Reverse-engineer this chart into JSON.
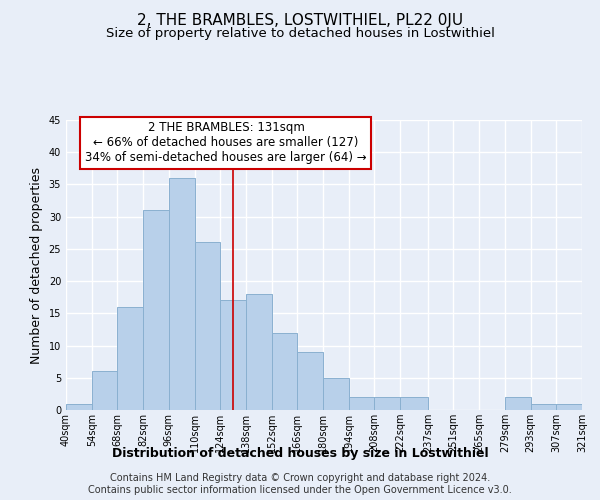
{
  "title": "2, THE BRAMBLES, LOSTWITHIEL, PL22 0JU",
  "subtitle": "Size of property relative to detached houses in Lostwithiel",
  "xlabel": "Distribution of detached houses by size in Lostwithiel",
  "ylabel": "Number of detached properties",
  "bin_edges": [
    40,
    54,
    68,
    82,
    96,
    110,
    124,
    138,
    152,
    166,
    180,
    194,
    208,
    222,
    237,
    251,
    265,
    279,
    293,
    307,
    321
  ],
  "bar_values": [
    1,
    6,
    16,
    31,
    36,
    26,
    17,
    18,
    12,
    9,
    5,
    2,
    2,
    2,
    0,
    0,
    0,
    2,
    1,
    1
  ],
  "tick_labels": [
    "40sqm",
    "54sqm",
    "68sqm",
    "82sqm",
    "96sqm",
    "110sqm",
    "124sqm",
    "138sqm",
    "152sqm",
    "166sqm",
    "180sqm",
    "194sqm",
    "208sqm",
    "222sqm",
    "237sqm",
    "251sqm",
    "265sqm",
    "279sqm",
    "293sqm",
    "307sqm",
    "321sqm"
  ],
  "bar_color": "#b8d0ea",
  "bar_edge_color": "#8ab0d0",
  "reference_line_x": 131,
  "reference_line_color": "#cc0000",
  "annotation_text": "2 THE BRAMBLES: 131sqm\n← 66% of detached houses are smaller (127)\n34% of semi-detached houses are larger (64) →",
  "annotation_box_color": "#ffffff",
  "annotation_box_edge": "#cc0000",
  "ylim": [
    0,
    45
  ],
  "yticks": [
    0,
    5,
    10,
    15,
    20,
    25,
    30,
    35,
    40,
    45
  ],
  "footer_line1": "Contains HM Land Registry data © Crown copyright and database right 2024.",
  "footer_line2": "Contains public sector information licensed under the Open Government Licence v3.0.",
  "background_color": "#e8eef8",
  "grid_color": "#ffffff",
  "title_fontsize": 11,
  "subtitle_fontsize": 9.5,
  "axis_label_fontsize": 9,
  "tick_fontsize": 7,
  "annotation_fontsize": 8.5,
  "footer_fontsize": 7
}
